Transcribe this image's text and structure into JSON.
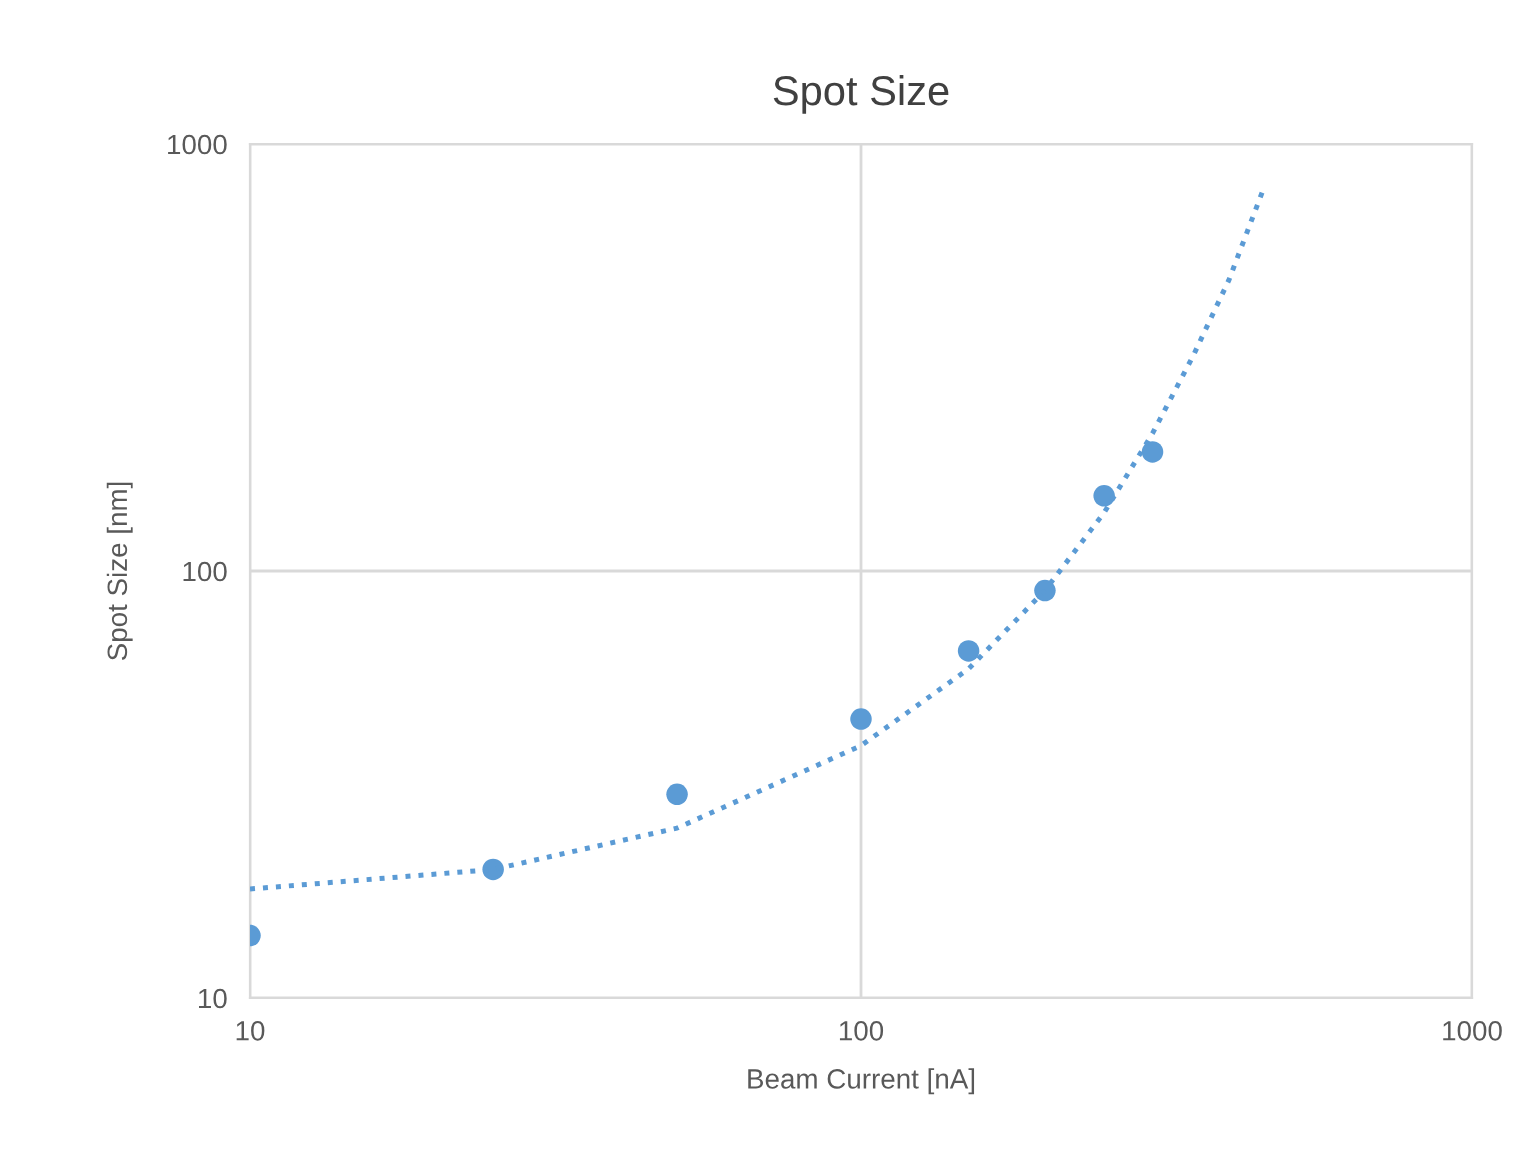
{
  "chart_data": {
    "type": "scatter",
    "title": "Spot Size",
    "xlabel": "Beam Current [nA]",
    "ylabel": "Spot Size [nm]",
    "log": "xy",
    "xlim": [
      10,
      1000
    ],
    "ylim": [
      10,
      1000
    ],
    "xticks": [
      10,
      100,
      1000
    ],
    "yticks": [
      10,
      100,
      1000
    ],
    "grid": true,
    "legend": false,
    "series": [
      {
        "color": "#5b9bd5",
        "marker": "circle",
        "x": [
          10,
          25,
          50,
          100,
          150,
          200,
          250,
          300
        ],
        "values": [
          14,
          20,
          30,
          45,
          65,
          90,
          150,
          190
        ]
      },
      {
        "type": "line",
        "color": "#5b9bd5",
        "line_style": "dotted",
        "marker": "none",
        "x": [
          10,
          25,
          50,
          100,
          150,
          200,
          250,
          300,
          350,
          400,
          455
        ],
        "values": [
          18,
          20,
          25,
          39,
          59,
          90,
          137,
          210,
          320,
          480,
          780
        ]
      }
    ]
  }
}
